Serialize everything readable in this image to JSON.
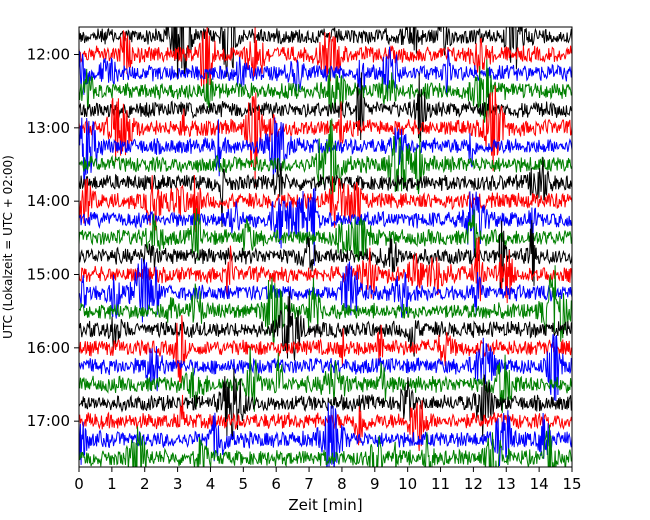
{
  "chart_data": {
    "type": "line",
    "title": "",
    "xlabel": "Zeit  [min]",
    "ylabel": "UTC (Lokalzeit = UTC + 02:00)",
    "xlim": [
      0,
      15
    ],
    "x_ticks": [
      "0",
      "1",
      "2",
      "3",
      "4",
      "5",
      "6",
      "7",
      "8",
      "9",
      "10",
      "11",
      "12",
      "13",
      "14",
      "15"
    ],
    "y_ticks": [
      "12:00",
      "13:00",
      "14:00",
      "15:00",
      "16:00",
      "17:00"
    ],
    "y_start": "11:45",
    "trace_interval_min": 15,
    "trace_count": 24,
    "trace_colors": [
      "#000000",
      "#ff0000",
      "#0000ff",
      "#008000"
    ],
    "grid": false,
    "legend": "none"
  }
}
